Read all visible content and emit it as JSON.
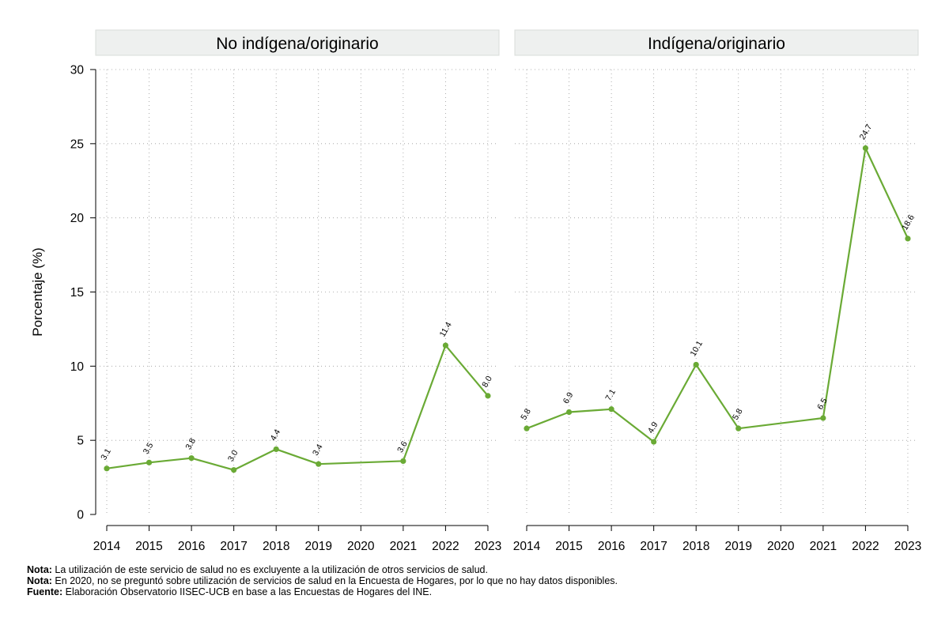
{
  "chart_data": {
    "type": "line",
    "ylabel": "Porcentaje (%)",
    "ylim": [
      0,
      30
    ],
    "yticks": [
      0,
      5,
      10,
      15,
      20,
      25,
      30
    ],
    "xticks": [
      2014,
      2015,
      2016,
      2017,
      2018,
      2019,
      2020,
      2021,
      2022,
      2023
    ],
    "grid": true,
    "line_color": "#6aaa35",
    "panel_header_color": "#eef0ef",
    "panels": [
      {
        "title": "No indígena/originario",
        "series": [
          {
            "x": [
              2014,
              2015,
              2016,
              2017,
              2018,
              2019,
              2021,
              2022,
              2023
            ],
            "values": [
              3.1,
              3.5,
              3.8,
              3.0,
              4.4,
              3.4,
              3.6,
              11.4,
              8.0
            ],
            "labels": [
              "3.1",
              "3.5",
              "3.8",
              "3.0",
              "4.4",
              "3.4",
              "3.6",
              "11.4",
              "8.0"
            ]
          }
        ]
      },
      {
        "title": "Indígena/originario",
        "series": [
          {
            "x": [
              2014,
              2015,
              2016,
              2017,
              2018,
              2019,
              2021,
              2022,
              2023
            ],
            "values": [
              5.8,
              6.9,
              7.1,
              4.9,
              10.1,
              5.8,
              6.5,
              24.7,
              18.6
            ],
            "labels": [
              "5.8",
              "6.9",
              "7.1",
              "4.9",
              "10.1",
              "5.8",
              "6.5",
              "24.7",
              "18.6"
            ]
          }
        ]
      }
    ]
  },
  "notes": [
    {
      "label": "Nota:",
      "text": " La utilización de este servicio de salud no es excluyente a la utilización de otros servicios de salud."
    },
    {
      "label": "Nota:",
      "text": " En 2020, no se preguntó sobre utilización de servicios de salud en la Encuesta de Hogares, por lo que no hay datos disponibles."
    },
    {
      "label": "Fuente:",
      "text": " Elaboración Observatorio IISEC-UCB en base a las Encuestas de Hogares del INE."
    }
  ]
}
